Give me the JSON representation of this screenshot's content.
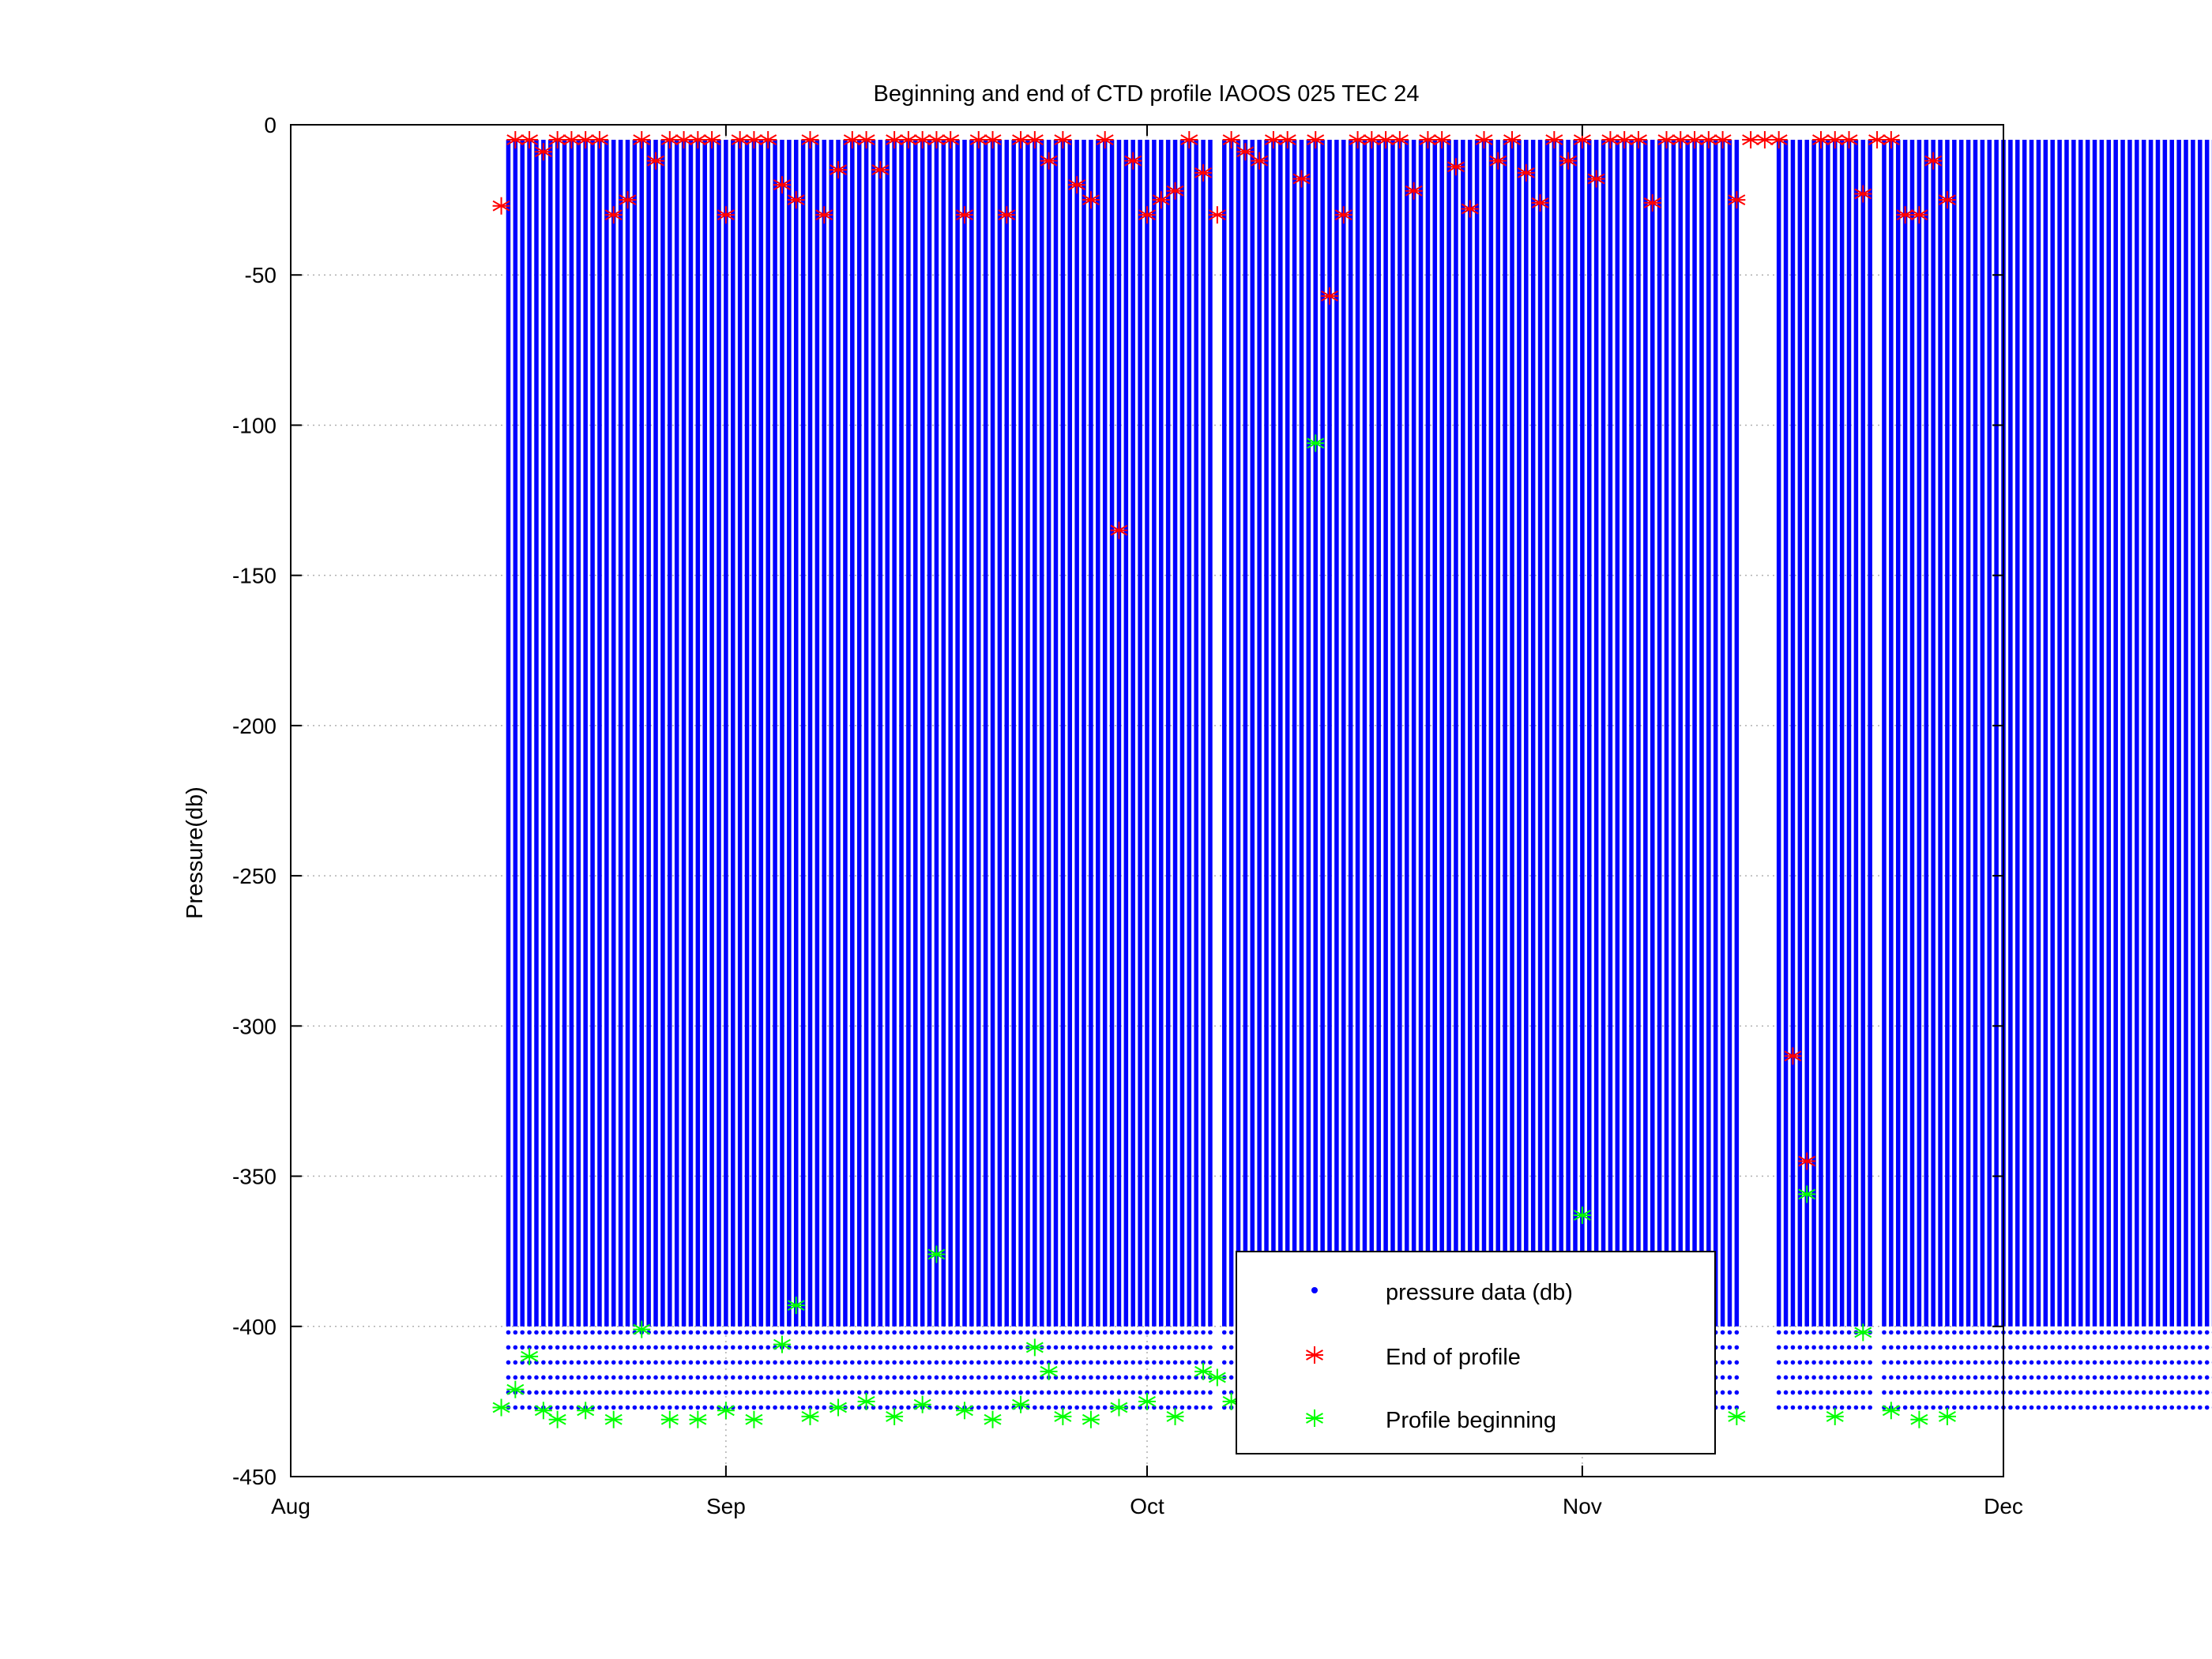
{
  "chart_data": {
    "type": "scatter",
    "title": "Beginning and end of CTD profile IAOOS 025 TEC 24",
    "xlabel": "",
    "ylabel": "Pressure(db)",
    "xlim": [
      "Aug",
      "Dec"
    ],
    "ylim": [
      -450,
      0
    ],
    "grid": true,
    "legend_position": "bottom-right",
    "x_tick_labels": [
      "Aug",
      "Sep",
      "Oct",
      "Nov",
      "Dec"
    ],
    "y_tick_labels": [
      "0",
      "-50",
      "-100",
      "-150",
      "-200",
      "-250",
      "-300",
      "-350",
      "-400",
      "-450"
    ],
    "x_axis_start": "Aug 1",
    "profile_period_days": 0.5,
    "profile_range_days": [
      15.5,
      137.5
    ],
    "gaps_days": [
      [
        45.5,
        46
      ],
      [
        65.8,
        66.3
      ],
      [
        103.4,
        105.8
      ],
      [
        112.5,
        113.1
      ]
    ],
    "series": [
      {
        "name": "pressure data (db)",
        "marker": "dot",
        "color": "#0000ff",
        "typical_range": [
          -430,
          -5
        ]
      },
      {
        "name": "End of profile",
        "marker": "asterisk",
        "color": "#ff0000",
        "points": [
          [
            "Aug 16",
            -27
          ],
          [
            "Aug 17",
            -5
          ],
          [
            "Aug 18",
            -5
          ],
          [
            "Aug 19",
            -9
          ],
          [
            "Aug 20",
            -5
          ],
          [
            "Aug 21",
            -5
          ],
          [
            "Aug 22",
            -5
          ],
          [
            "Aug 23",
            -5
          ],
          [
            "Aug 24",
            -30
          ],
          [
            "Aug 25",
            -25
          ],
          [
            "Aug 26",
            -5
          ],
          [
            "Aug 27",
            -12
          ],
          [
            "Aug 28",
            -5
          ],
          [
            "Aug 29",
            -5
          ],
          [
            "Aug 30",
            -5
          ],
          [
            "Aug 31",
            -5
          ],
          [
            "Sep 1",
            -30
          ],
          [
            "Sep 2",
            -5
          ],
          [
            "Sep 3",
            -5
          ],
          [
            "Sep 4",
            -5
          ],
          [
            "Sep 5",
            -20
          ],
          [
            "Sep 6",
            -25
          ],
          [
            "Sep 7",
            -5
          ],
          [
            "Sep 8",
            -30
          ],
          [
            "Sep 9",
            -15
          ],
          [
            "Sep 10",
            -5
          ],
          [
            "Sep 11",
            -5
          ],
          [
            "Sep 12",
            -15
          ],
          [
            "Sep 13",
            -5
          ],
          [
            "Sep 14",
            -5
          ],
          [
            "Sep 15",
            -5
          ],
          [
            "Sep 16",
            -5
          ],
          [
            "Sep 17",
            -5
          ],
          [
            "Sep 18",
            -30
          ],
          [
            "Sep 19",
            -5
          ],
          [
            "Sep 20",
            -5
          ],
          [
            "Sep 21",
            -30
          ],
          [
            "Sep 22",
            -5
          ],
          [
            "Sep 23",
            -5
          ],
          [
            "Sep 24",
            -12
          ],
          [
            "Sep 25",
            -5
          ],
          [
            "Sep 26",
            -20
          ],
          [
            "Sep 27",
            -25
          ],
          [
            "Sep 28",
            -5
          ],
          [
            "Sep 29",
            -135
          ],
          [
            "Sep 30",
            -12
          ],
          [
            "Oct 1",
            -30
          ],
          [
            "Oct 2",
            -25
          ],
          [
            "Oct 3",
            -22
          ],
          [
            "Oct 4",
            -5
          ],
          [
            "Oct 5",
            -16
          ],
          [
            "Oct 6",
            -30
          ],
          [
            "Oct 7",
            -5
          ],
          [
            "Oct 8",
            -9
          ],
          [
            "Oct 9",
            -12
          ],
          [
            "Oct 10",
            -5
          ],
          [
            "Oct 11",
            -5
          ],
          [
            "Oct 12",
            -18
          ],
          [
            "Oct 13",
            -5
          ],
          [
            "Oct 14",
            -57
          ],
          [
            "Oct 15",
            -30
          ],
          [
            "Oct 16",
            -5
          ],
          [
            "Oct 17",
            -5
          ],
          [
            "Oct 18",
            -5
          ],
          [
            "Oct 19",
            -5
          ],
          [
            "Oct 20",
            -22
          ],
          [
            "Oct 21",
            -5
          ],
          [
            "Oct 22",
            -5
          ],
          [
            "Oct 23",
            -14
          ],
          [
            "Oct 24",
            -28
          ],
          [
            "Oct 25",
            -5
          ],
          [
            "Oct 26",
            -12
          ],
          [
            "Oct 27",
            -5
          ],
          [
            "Oct 28",
            -16
          ],
          [
            "Oct 29",
            -26
          ],
          [
            "Oct 30",
            -5
          ],
          [
            "Oct 31",
            -12
          ],
          [
            "Nov 1",
            -5
          ],
          [
            "Nov 2",
            -18
          ],
          [
            "Nov 3",
            -5
          ],
          [
            "Nov 4",
            -5
          ],
          [
            "Nov 5",
            -5
          ],
          [
            "Nov 6",
            -26
          ],
          [
            "Nov 7",
            -5
          ],
          [
            "Nov 8",
            -5
          ],
          [
            "Nov 9",
            -5
          ],
          [
            "Nov 10",
            -5
          ],
          [
            "Nov 11",
            -5
          ],
          [
            "Nov 12",
            -25
          ],
          [
            "Nov 13",
            -5
          ],
          [
            "Nov 14",
            -5
          ],
          [
            "Nov 15",
            -5
          ],
          [
            "Nov 16",
            -310
          ],
          [
            "Nov 17",
            -345
          ],
          [
            "Nov 18",
            -5
          ],
          [
            "Nov 19",
            -5
          ],
          [
            "Nov 20",
            -5
          ],
          [
            "Nov 21",
            -23
          ],
          [
            "Nov 22",
            -5
          ],
          [
            "Nov 23",
            -5
          ],
          [
            "Nov 24",
            -30
          ],
          [
            "Nov 25",
            -30
          ],
          [
            "Nov 26",
            -12
          ],
          [
            "Nov 27",
            -25
          ]
        ]
      },
      {
        "name": "Profile beginning",
        "marker": "asterisk",
        "color": "#00ff00",
        "points": [
          [
            "Aug 16",
            -427
          ],
          [
            "Aug 17",
            -421
          ],
          [
            "Aug 18",
            -410
          ],
          [
            "Aug 19",
            -428
          ],
          [
            "Aug 20",
            -431
          ],
          [
            "Aug 22",
            -428
          ],
          [
            "Aug 24",
            -431
          ],
          [
            "Aug 26",
            -401
          ],
          [
            "Aug 28",
            -431
          ],
          [
            "Aug 30",
            -431
          ],
          [
            "Sep 1",
            -428
          ],
          [
            "Sep 3",
            -431
          ],
          [
            "Sep 5",
            -406
          ],
          [
            "Sep 6",
            -393
          ],
          [
            "Sep 7",
            -430
          ],
          [
            "Sep 9",
            -427
          ],
          [
            "Sep 11",
            -425
          ],
          [
            "Sep 13",
            -430
          ],
          [
            "Sep 15",
            -426
          ],
          [
            "Sep 16",
            -376
          ],
          [
            "Sep 18",
            -428
          ],
          [
            "Sep 20",
            -431
          ],
          [
            "Sep 22",
            -426
          ],
          [
            "Sep 23",
            -407
          ],
          [
            "Sep 24",
            -415
          ],
          [
            "Sep 25",
            -430
          ],
          [
            "Sep 27",
            -431
          ],
          [
            "Sep 29",
            -427
          ],
          [
            "Oct 1",
            -425
          ],
          [
            "Oct 3",
            -430
          ],
          [
            "Oct 5",
            -415
          ],
          [
            "Oct 6",
            -417
          ],
          [
            "Oct 7",
            -425
          ],
          [
            "Oct 9",
            -431
          ],
          [
            "Oct 11",
            -426
          ],
          [
            "Oct 13",
            -106
          ],
          [
            "Oct 15",
            -431
          ],
          [
            "Oct 17",
            -430
          ],
          [
            "Oct 20",
            -431
          ],
          [
            "Oct 23",
            -430
          ],
          [
            "Oct 26",
            -431
          ],
          [
            "Oct 29",
            -430
          ],
          [
            "Nov 1",
            -363
          ],
          [
            "Nov 3",
            -431
          ],
          [
            "Nov 6",
            -430
          ],
          [
            "Nov 9",
            -431
          ],
          [
            "Nov 12",
            -430
          ],
          [
            "Nov 17",
            -356
          ],
          [
            "Nov 19",
            -430
          ],
          [
            "Nov 21",
            -402
          ],
          [
            "Nov 23",
            -428
          ],
          [
            "Nov 25",
            -431
          ],
          [
            "Nov 27",
            -430
          ]
        ]
      }
    ]
  }
}
